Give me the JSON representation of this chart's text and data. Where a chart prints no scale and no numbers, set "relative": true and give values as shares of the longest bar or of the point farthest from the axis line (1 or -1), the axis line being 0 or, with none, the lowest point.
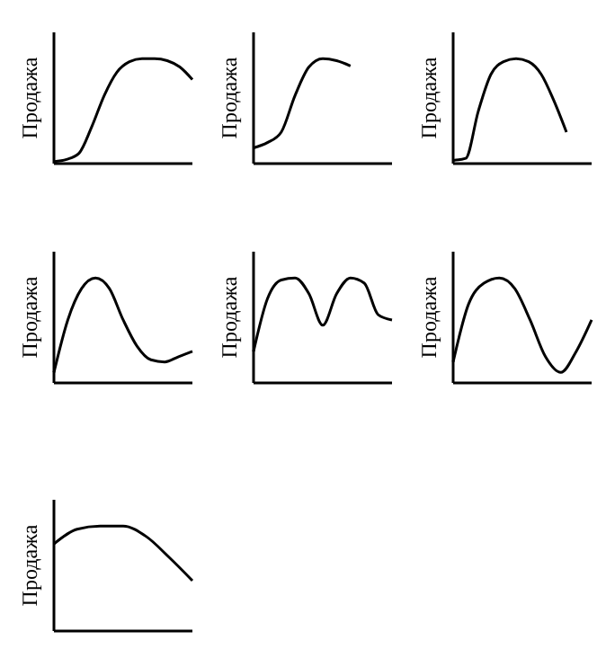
{
  "chart_data": [
    {
      "type": "line",
      "ylabel": "Продажа",
      "relative": true,
      "tick_labels": false,
      "color": "#000000",
      "categories": [
        null,
        null,
        null,
        null,
        null,
        null,
        null,
        null,
        null,
        null,
        null,
        null
      ],
      "values": [
        0.02,
        0.04,
        0.1,
        0.35,
        0.65,
        0.87,
        0.97,
        1,
        1,
        0.98,
        0.92,
        0.8
      ]
    },
    {
      "type": "line",
      "ylabel": "Продажа",
      "relative": true,
      "tick_labels": false,
      "color": "#000000",
      "categories": [
        null,
        null,
        null,
        null,
        null,
        null,
        null,
        null,
        null,
        null,
        null
      ],
      "values": [
        0.15,
        0.2,
        0.3,
        0.65,
        0.92,
        1,
        0.98,
        0.93,
        null,
        null,
        null
      ]
    },
    {
      "type": "line",
      "ylabel": "Продажа",
      "relative": true,
      "tick_labels": false,
      "color": "#000000",
      "categories": [
        null,
        null,
        null,
        null,
        null,
        null,
        null,
        null,
        null,
        null,
        null,
        null
      ],
      "values": [
        0.03,
        0.05,
        0.5,
        0.85,
        0.97,
        1,
        0.97,
        0.85,
        0.6,
        0.3,
        null,
        null
      ]
    },
    {
      "type": "line",
      "ylabel": "Продажа",
      "relative": true,
      "tick_labels": false,
      "color": "#000000",
      "categories": [
        null,
        null,
        null,
        null,
        null,
        null,
        null,
        null,
        null,
        null,
        null
      ],
      "values": [
        0.1,
        0.6,
        0.9,
        1,
        0.9,
        0.6,
        0.35,
        0.22,
        0.2,
        0.25,
        0.3
      ]
    },
    {
      "type": "line",
      "ylabel": "Продажа",
      "relative": true,
      "tick_labels": false,
      "color": "#000000",
      "categories": [
        null,
        null,
        null,
        null,
        null,
        null,
        null,
        null,
        null,
        null,
        null
      ],
      "values": [
        0.3,
        0.8,
        0.98,
        1,
        0.85,
        0.55,
        0.85,
        1,
        0.95,
        0.65,
        0.6
      ]
    },
    {
      "type": "line",
      "ylabel": "Продажа",
      "relative": true,
      "tick_labels": false,
      "color": "#000000",
      "categories": [
        null,
        null,
        null,
        null,
        null,
        null,
        null,
        null,
        null,
        null
      ],
      "values": [
        0.2,
        0.75,
        0.95,
        1,
        0.9,
        0.6,
        0.25,
        0.1,
        0.3,
        0.6
      ]
    },
    {
      "type": "line",
      "ylabel": "Продажа",
      "relative": true,
      "tick_labels": false,
      "color": "#000000",
      "categories": [
        null,
        null,
        null,
        null,
        null,
        null,
        null
      ],
      "values": [
        0.83,
        0.97,
        1,
        1,
        0.9,
        0.7,
        0.48
      ]
    }
  ]
}
